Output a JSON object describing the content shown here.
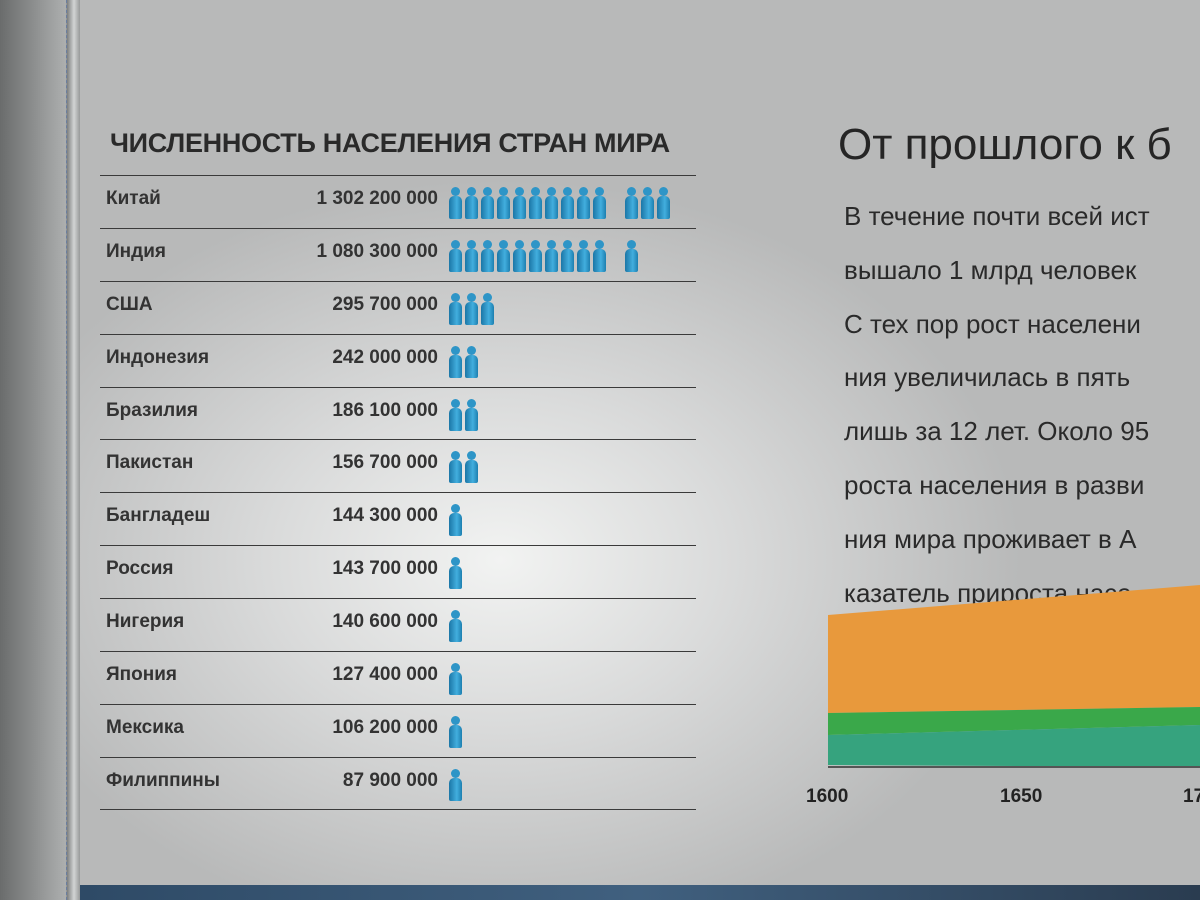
{
  "table": {
    "title": "ЧИСЛЕННОСТЬ НАСЕЛЕНИЯ СТРАН МИРА",
    "rows": [
      {
        "country": "Китай",
        "population": "1 302 200 000",
        "icons": 13
      },
      {
        "country": "Индия",
        "population": "1 080 300 000",
        "icons": 11
      },
      {
        "country": "США",
        "population": "295 700 000",
        "icons": 3
      },
      {
        "country": "Индонезия",
        "population": "242 000 000",
        "icons": 2
      },
      {
        "country": "Бразилия",
        "population": "186 100 000",
        "icons": 2
      },
      {
        "country": "Пакистан",
        "population": "156 700 000",
        "icons": 2
      },
      {
        "country": "Бангладеш",
        "population": "144 300 000",
        "icons": 1
      },
      {
        "country": "Россия",
        "population": "143 700 000",
        "icons": 1
      },
      {
        "country": "Нигерия",
        "population": "140 600 000",
        "icons": 1
      },
      {
        "country": "Япония",
        "population": "127 400 000",
        "icons": 1
      },
      {
        "country": "Мексика",
        "population": "106 200 000",
        "icons": 1
      },
      {
        "country": "Филиппины",
        "population": "87 900 000",
        "icons": 1
      }
    ],
    "icon": "person-icon"
  },
  "article": {
    "heading": "От прошлого к б",
    "lines": [
      "В течение почти всей ист",
      "вышало 1 млрд человек",
      "С тех пор рост населени",
      "ния увеличилась в пять",
      "лишь за 12 лет. Около 95",
      "роста населения в разви",
      "ния мира проживает в А",
      "казатель прироста насе"
    ]
  },
  "chart_data": {
    "type": "area",
    "x_ticks": [
      "1600",
      "1650",
      "17"
    ],
    "colors": [
      "#e8993c",
      "#3aa84a",
      "#36a37e"
    ]
  }
}
